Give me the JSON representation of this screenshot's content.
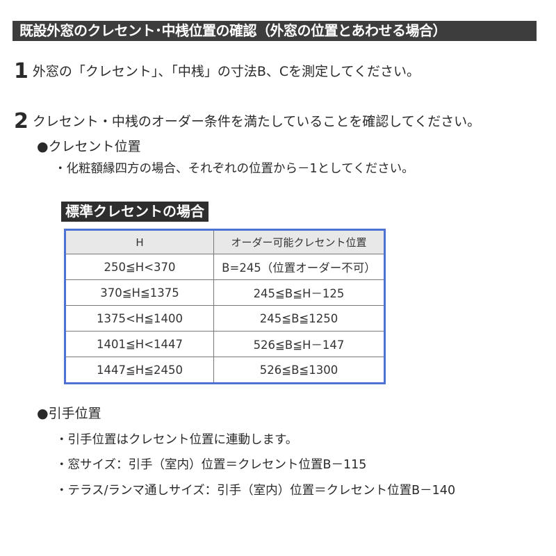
{
  "title": "既設外窓のクレセント･中桟位置の確認（外窓の位置とあわせる場合）",
  "step1": {
    "num": "1",
    "text": "外窓の「クレセント」、「中桟」の寸法B、Cを測定してください。"
  },
  "step2": {
    "num": "2",
    "text": "クレセント・中桟のオーダー条件を満たしていることを確認してください。"
  },
  "crescent": {
    "heading": "●クレセント位置",
    "note": "・化粧額縁四方の場合、それぞれの位置から－1としてください。"
  },
  "table": {
    "title": "標準クレセントの場合",
    "headers": [
      "H",
      "オーダー可能クレセント位置"
    ],
    "rows": [
      [
        "250≦H<370",
        "B=245（位置オーダー不可）"
      ],
      [
        "370≦H≦1375",
        "245≦B≦H－125"
      ],
      [
        "1375<H≦1400",
        "245≦B≦1250"
      ],
      [
        "1401≦H<1447",
        "526≦B≦H－147"
      ],
      [
        "1447≦H≦2450",
        "526≦B≦1300"
      ]
    ]
  },
  "handle": {
    "heading": "●引手位置",
    "items": [
      "・引手位置はクレセント位置に連動します。",
      "・窓サイズ：引手（室内）位置＝クレセント位置B－115",
      "・テラス/ランマ通しサイズ：引手（室内）位置＝クレセント位置B－140"
    ]
  }
}
